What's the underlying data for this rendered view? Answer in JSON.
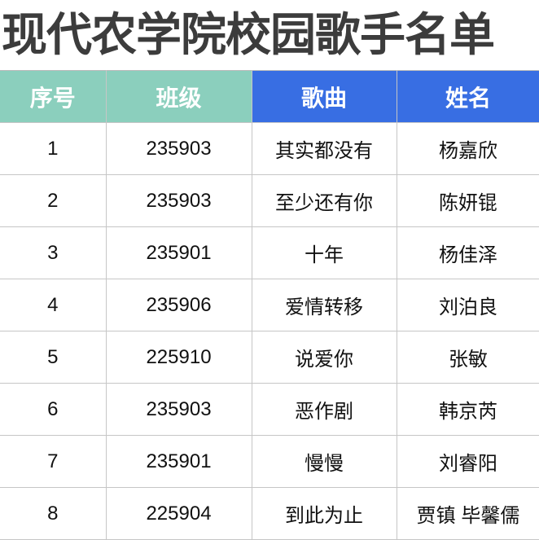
{
  "title": "现代农学院校园歌手名单",
  "colors": {
    "header_left": "#8bcfbd",
    "header_right": "#386ee3",
    "grid": "#c6c6c6"
  },
  "table": {
    "headers": [
      "序号",
      "班级",
      "歌曲",
      "姓名"
    ],
    "rows": [
      [
        "1",
        "235903",
        "其实都没有",
        "杨嘉欣"
      ],
      [
        "2",
        "235903",
        "至少还有你",
        "陈妍锟"
      ],
      [
        "3",
        "235901",
        "十年",
        "杨佳泽"
      ],
      [
        "4",
        "235906",
        "爱情转移",
        "刘泊良"
      ],
      [
        "5",
        "225910",
        "说爱你",
        "张敏"
      ],
      [
        "6",
        "235903",
        "恶作剧",
        "韩京芮"
      ],
      [
        "7",
        "235901",
        "慢慢",
        "刘睿阳"
      ],
      [
        "8",
        "225904",
        "到此为止",
        "贾镇 毕馨儒"
      ]
    ]
  }
}
